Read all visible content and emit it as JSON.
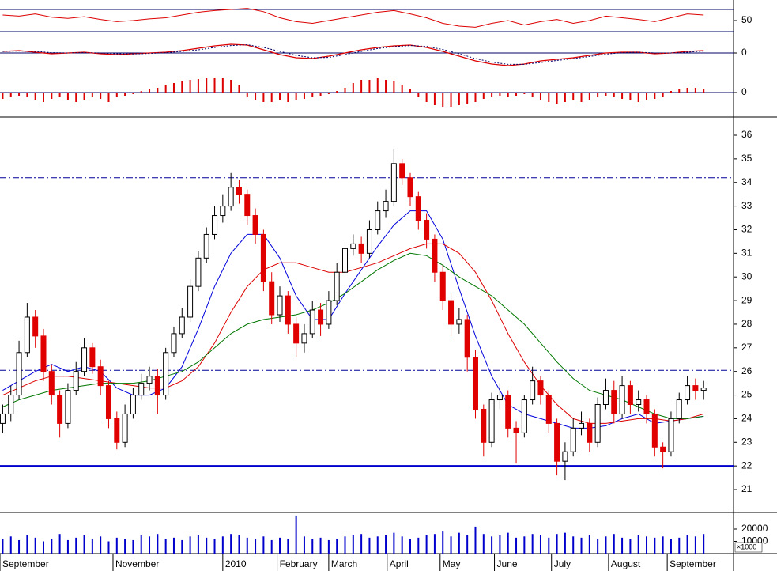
{
  "chart_data": {
    "type": "candlestick",
    "xlim": [
      0,
      270
    ],
    "xticks": [
      {
        "value": 0,
        "label": "September"
      },
      {
        "value": 41.6,
        "label": "November"
      },
      {
        "value": 82,
        "label": "2010"
      },
      {
        "value": 102,
        "label": "February"
      },
      {
        "value": 121,
        "label": "March"
      },
      {
        "value": 142.5,
        "label": "April"
      },
      {
        "value": 162,
        "label": "May"
      },
      {
        "value": 182,
        "label": "June"
      },
      {
        "value": 203,
        "label": "July"
      },
      {
        "value": 224,
        "label": "August"
      },
      {
        "value": 245.6,
        "label": "September"
      }
    ],
    "x": [
      1,
      4,
      7,
      10,
      13,
      16,
      19,
      22,
      25,
      28,
      31,
      34,
      37,
      40,
      43,
      46,
      49,
      52,
      55,
      58,
      61,
      64,
      67,
      70,
      73,
      76,
      79,
      82,
      85,
      88,
      91,
      94,
      97,
      100,
      103,
      106,
      109,
      112,
      115,
      118,
      121,
      124,
      127,
      130,
      133,
      136,
      139,
      142,
      145,
      148,
      151,
      154,
      157,
      160,
      163,
      166,
      169,
      172,
      175,
      178,
      181,
      184,
      187,
      190,
      193,
      196,
      199,
      202,
      205,
      208,
      211,
      214,
      217,
      220,
      223,
      226,
      229,
      232,
      235,
      238,
      241,
      244,
      247,
      250,
      253,
      256,
      259
    ],
    "open": [
      23.8,
      24.2,
      25.0,
      26.8,
      28.3,
      27.5,
      26.0,
      25.0,
      23.8,
      25.2,
      26.0,
      27.0,
      26.2,
      25.4,
      24.0,
      23.0,
      24.2,
      25.0,
      25.5,
      25.8,
      25.0,
      26.8,
      27.6,
      28.3,
      29.6,
      30.8,
      31.8,
      32.6,
      33.0,
      33.8,
      33.5,
      32.6,
      31.8,
      29.8,
      28.4,
      29.2,
      28.0,
      27.2,
      27.6,
      28.6,
      28.0,
      29.0,
      30.2,
      31.2,
      31.4,
      31.0,
      32.0,
      32.8,
      33.2,
      34.8,
      34.2,
      33.4,
      32.4,
      31.6,
      30.2,
      29.0,
      28.0,
      28.2,
      26.6,
      24.4,
      23.0,
      24.8,
      25.0,
      23.6,
      23.4,
      24.8,
      25.6,
      25.0,
      23.8,
      22.2,
      22.6,
      23.6,
      23.8,
      23.0,
      24.6,
      25.2,
      24.2,
      25.4,
      24.6,
      24.8,
      24.2,
      22.8,
      22.6,
      24.0,
      24.8,
      25.4,
      25.2
    ],
    "high": [
      24.6,
      25.4,
      27.3,
      28.9,
      28.6,
      27.8,
      26.3,
      25.2,
      25.5,
      26.4,
      27.4,
      27.2,
      26.5,
      25.6,
      24.3,
      24.6,
      25.3,
      25.9,
      26.2,
      26.1,
      27.0,
      27.9,
      28.7,
      29.9,
      31.1,
      32.1,
      33.0,
      33.5,
      34.4,
      34.1,
      33.7,
      32.9,
      32.0,
      30.2,
      29.6,
      29.4,
      28.3,
      28.0,
      29.0,
      28.9,
      29.4,
      30.6,
      31.5,
      31.8,
      31.7,
      32.4,
      33.2,
      33.7,
      35.4,
      35.0,
      34.4,
      33.6,
      32.7,
      31.8,
      30.5,
      29.3,
      28.7,
      28.4,
      26.9,
      24.6,
      25.1,
      25.5,
      25.2,
      23.9,
      25.0,
      26.2,
      25.8,
      25.2,
      24.0,
      23.0,
      24.0,
      24.3,
      24.0,
      24.9,
      25.7,
      25.6,
      25.8,
      25.6,
      25.2,
      25.0,
      24.4,
      23.0,
      24.3,
      25.1,
      25.8,
      25.7,
      25.6
    ],
    "low": [
      23.4,
      23.9,
      24.8,
      26.6,
      27.0,
      25.6,
      24.6,
      23.2,
      23.6,
      25.0,
      25.8,
      25.9,
      25.0,
      23.6,
      22.7,
      22.8,
      24.0,
      24.8,
      25.2,
      24.2,
      24.8,
      26.6,
      27.4,
      28.1,
      29.4,
      30.6,
      31.6,
      32.3,
      32.8,
      33.1,
      32.2,
      31.4,
      29.4,
      28.0,
      28.1,
      27.6,
      26.6,
      26.8,
      27.4,
      27.5,
      27.8,
      28.8,
      30.0,
      30.9,
      30.6,
      30.8,
      31.8,
      32.5,
      33.0,
      33.9,
      33.0,
      32.0,
      31.2,
      29.8,
      28.6,
      27.5,
      27.6,
      26.0,
      24.0,
      22.4,
      22.8,
      24.4,
      23.2,
      22.1,
      23.2,
      24.6,
      24.6,
      23.4,
      21.6,
      21.4,
      22.4,
      23.3,
      22.6,
      22.8,
      24.4,
      23.8,
      24.0,
      24.2,
      24.3,
      23.8,
      22.4,
      21.9,
      22.4,
      23.8,
      24.6,
      24.8,
      24.8
    ],
    "close": [
      24.2,
      25.0,
      26.8,
      28.3,
      27.5,
      26.0,
      25.0,
      23.8,
      25.2,
      26.0,
      27.0,
      26.2,
      25.4,
      24.0,
      23.0,
      24.2,
      25.0,
      25.5,
      25.8,
      25.0,
      26.8,
      27.6,
      28.3,
      29.6,
      30.8,
      31.8,
      32.6,
      33.0,
      33.8,
      33.5,
      32.6,
      31.8,
      29.8,
      28.4,
      29.2,
      28.0,
      27.2,
      27.6,
      28.6,
      28.0,
      29.0,
      30.2,
      31.2,
      31.4,
      31.0,
      32.0,
      32.8,
      33.2,
      34.8,
      34.2,
      33.4,
      32.4,
      31.6,
      30.2,
      29.0,
      28.0,
      28.2,
      26.6,
      24.4,
      23.0,
      24.8,
      25.0,
      23.6,
      23.4,
      24.8,
      25.6,
      25.0,
      23.8,
      22.2,
      22.6,
      23.6,
      23.8,
      23.0,
      24.6,
      25.2,
      24.2,
      25.4,
      24.6,
      24.8,
      24.2,
      22.8,
      22.6,
      24.0,
      24.8,
      25.4,
      25.2,
      25.3
    ],
    "up_color": "#000000",
    "down_color": "#e00000",
    "overlays": {
      "x": [
        1,
        7,
        13,
        19,
        25,
        31,
        37,
        43,
        49,
        55,
        61,
        67,
        73,
        79,
        85,
        91,
        97,
        103,
        109,
        115,
        121,
        127,
        133,
        139,
        145,
        151,
        157,
        163,
        169,
        175,
        181,
        187,
        193,
        199,
        205,
        211,
        217,
        223,
        229,
        235,
        241,
        247,
        253,
        259
      ],
      "series": [
        {
          "color": "#0000dd",
          "values": [
            25.2,
            25.6,
            26.0,
            26.3,
            26.0,
            26.2,
            26.0,
            25.3,
            25.0,
            25.0,
            25.3,
            26.2,
            27.8,
            29.6,
            31.0,
            31.8,
            31.8,
            30.8,
            29.2,
            28.2,
            28.2,
            29.3,
            30.3,
            31.3,
            32.2,
            32.8,
            32.8,
            31.6,
            29.5,
            27.5,
            25.8,
            24.6,
            24.2,
            24.0,
            23.8,
            23.6,
            23.6,
            23.7,
            24.0,
            24.2,
            23.8,
            23.9,
            24.0,
            24.1
          ]
        },
        {
          "color": "#dd0000",
          "values": [
            25.0,
            25.3,
            25.6,
            25.8,
            25.8,
            25.7,
            25.6,
            25.5,
            25.4,
            25.3,
            25.3,
            25.6,
            26.2,
            27.2,
            28.5,
            29.6,
            30.3,
            30.6,
            30.6,
            30.4,
            30.2,
            30.2,
            30.4,
            30.6,
            30.9,
            31.2,
            31.4,
            31.4,
            31.0,
            30.2,
            29.0,
            27.6,
            26.4,
            25.4,
            24.6,
            24.0,
            23.8,
            23.8,
            23.9,
            24.0,
            24.0,
            23.9,
            24.0,
            24.2
          ]
        },
        {
          "color": "#007700",
          "values": [
            24.5,
            24.8,
            25.0,
            25.2,
            25.3,
            25.4,
            25.5,
            25.5,
            25.5,
            25.6,
            25.8,
            26.0,
            26.4,
            27.0,
            27.6,
            28.0,
            28.2,
            28.3,
            28.4,
            28.6,
            28.9,
            29.3,
            29.8,
            30.3,
            30.7,
            31.0,
            30.9,
            30.5,
            30.0,
            29.6,
            29.2,
            28.6,
            28.0,
            27.2,
            26.4,
            25.7,
            25.2,
            25.0,
            24.8,
            24.5,
            24.2,
            24.0,
            24.0,
            24.1
          ]
        }
      ]
    },
    "hlines": [
      {
        "value": 34.2,
        "style": "dashdot",
        "color": "#000099"
      },
      {
        "value": 26.05,
        "style": "dashdot",
        "color": "#000099"
      },
      {
        "value": 22,
        "style": "solid",
        "color": "#0000cc"
      }
    ],
    "ylim": [
      20.03,
      36.77
    ],
    "yticks": [
      21,
      22,
      23,
      24,
      25,
      26,
      27,
      28,
      29,
      30,
      31,
      32,
      33,
      34,
      35,
      36
    ],
    "rsi": {
      "ylim": [
        18.6,
        87.1
      ],
      "yticks": [
        50
      ],
      "hlines": [
        30,
        70
      ],
      "color": "#dd0000",
      "values": [
        60,
        58,
        62,
        56,
        54,
        57,
        52,
        48,
        50,
        53,
        55,
        60,
        65,
        68,
        70,
        72,
        66,
        55,
        48,
        45,
        50,
        55,
        60,
        65,
        68,
        62,
        55,
        45,
        40,
        38,
        45,
        50,
        42,
        48,
        52,
        45,
        50,
        58,
        55,
        52,
        48,
        55,
        62,
        60
      ]
    },
    "macd": {
      "ylim": [
        -1.4,
        0.85
      ],
      "yticks": [
        0
      ],
      "series": [
        {
          "color": "#dd0000",
          "style": "solid",
          "values": [
            0.1,
            0.15,
            0.05,
            -0.05,
            0,
            0.05,
            -0.05,
            -0.1,
            -0.05,
            0,
            0.05,
            0.15,
            0.3,
            0.45,
            0.55,
            0.5,
            0.2,
            -0.1,
            -0.3,
            -0.35,
            -0.2,
            0,
            0.2,
            0.35,
            0.45,
            0.5,
            0.35,
            0.1,
            -0.2,
            -0.5,
            -0.7,
            -0.8,
            -0.7,
            -0.5,
            -0.4,
            -0.3,
            -0.15,
            0,
            0.05,
            0.05,
            -0.05,
            0,
            0.1,
            0.15
          ]
        },
        {
          "color": "#000066",
          "style": "dotted",
          "values": [
            0.1,
            0.12,
            0.1,
            0.02,
            0,
            0.02,
            0,
            -0.05,
            -0.06,
            -0.03,
            0.02,
            0.1,
            0.2,
            0.35,
            0.47,
            0.52,
            0.35,
            0.1,
            -0.15,
            -0.3,
            -0.28,
            -0.1,
            0.1,
            0.28,
            0.4,
            0.47,
            0.42,
            0.22,
            -0.05,
            -0.35,
            -0.58,
            -0.72,
            -0.72,
            -0.6,
            -0.47,
            -0.36,
            -0.22,
            -0.07,
            0.02,
            0.05,
            0,
            0,
            0.05,
            0.12
          ]
        }
      ]
    },
    "histogram": {
      "ylim": [
        -1.15,
        1.0
      ],
      "yticks": [
        0
      ],
      "color": "#dd0000",
      "values": [
        -0.4,
        -0.3,
        -0.2,
        -0.3,
        -0.5,
        -0.6,
        -0.4,
        -0.3,
        -0.5,
        -0.6,
        -0.5,
        -0.3,
        -0.4,
        -0.6,
        -0.3,
        -0.2,
        -0.1,
        0.1,
        0.2,
        0.3,
        0.5,
        0.6,
        0.7,
        0.8,
        0.85,
        0.9,
        0.95,
        0.95,
        0.8,
        0.5,
        -0.3,
        -0.5,
        -0.6,
        -0.6,
        -0.5,
        -0.6,
        -0.5,
        -0.4,
        -0.3,
        -0.2,
        -0.1,
        0.1,
        0.3,
        0.6,
        0.8,
        0.8,
        0.9,
        0.8,
        0.7,
        0.5,
        0.2,
        -0.3,
        -0.6,
        -0.8,
        -0.9,
        -0.9,
        -0.8,
        -0.7,
        -0.6,
        -0.4,
        -0.3,
        -0.2,
        -0.3,
        -0.2,
        -0.1,
        -0.3,
        -0.5,
        -0.6,
        -0.7,
        -0.6,
        -0.5,
        -0.6,
        -0.5,
        -0.3,
        -0.2,
        -0.3,
        -0.4,
        -0.5,
        -0.6,
        -0.5,
        -0.4,
        -0.3,
        0.1,
        0.2,
        0.3,
        0.3,
        0.2
      ]
    },
    "volume": {
      "ylim": [
        0,
        32250
      ],
      "yticks": [
        10000,
        20000
      ],
      "unit_label": "×1000",
      "color": "#0000cc",
      "values": [
        12000,
        14000,
        11000,
        15000,
        13000,
        10000,
        12000,
        16000,
        11000,
        13000,
        15000,
        12000,
        14000,
        10000,
        13000,
        12000,
        11000,
        15000,
        14000,
        16000,
        12000,
        13000,
        11000,
        14000,
        15000,
        13000,
        12000,
        14000,
        16000,
        15000,
        13000,
        12000,
        14000,
        11000,
        13000,
        12000,
        31000,
        14000,
        12000,
        13000,
        11000,
        12000,
        14000,
        15000,
        16000,
        13000,
        14000,
        15000,
        17000,
        14000,
        12000,
        13000,
        15000,
        16000,
        18000,
        14000,
        17000,
        15000,
        22000,
        16000,
        14000,
        15000,
        17000,
        13000,
        14000,
        16000,
        15000,
        13000,
        16000,
        17000,
        14000,
        13000,
        15000,
        12000,
        14000,
        16000,
        13000,
        12000,
        15000,
        14000,
        13000,
        14000,
        12000,
        13000,
        15000,
        14000,
        16000
      ]
    }
  }
}
